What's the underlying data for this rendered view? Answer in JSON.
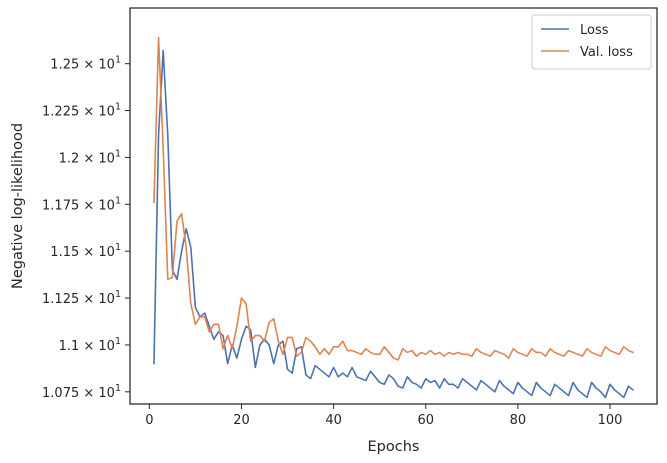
{
  "chart_data": {
    "type": "line",
    "title": "",
    "xlabel": "Epochs",
    "ylabel": "Negative log-likelihood",
    "xlim": [
      -4.2,
      110.2
    ],
    "ylim": [
      10.685,
      12.797
    ],
    "x_ticks": [
      0,
      20,
      40,
      60,
      80,
      100
    ],
    "x_tick_labels": [
      "0",
      "20",
      "40",
      "60",
      "80",
      "100"
    ],
    "y_ticks": [
      10.75,
      11.0,
      11.25,
      11.5,
      11.75,
      12.0,
      12.25,
      12.5
    ],
    "y_tick_mantissas": [
      "1.075",
      "1.1",
      "1.125",
      "1.15",
      "1.175",
      "1.2",
      "1.225",
      "1.25"
    ],
    "y_tick_multiplier": "× 10",
    "y_tick_exponent": "1",
    "grid": false,
    "legend_position": "top-right",
    "series": [
      {
        "name": "Loss",
        "color": "#4c72b0",
        "x": [
          1,
          2,
          3,
          4,
          5,
          6,
          7,
          8,
          9,
          10,
          11,
          12,
          13,
          14,
          15,
          16,
          17,
          18,
          19,
          20,
          21,
          22,
          23,
          24,
          25,
          26,
          27,
          28,
          29,
          30,
          31,
          32,
          33,
          34,
          35,
          36,
          37,
          38,
          39,
          40,
          41,
          42,
          43,
          44,
          45,
          46,
          47,
          48,
          49,
          50,
          51,
          52,
          53,
          54,
          55,
          56,
          57,
          58,
          59,
          60,
          61,
          62,
          63,
          64,
          65,
          66,
          67,
          68,
          69,
          70,
          71,
          72,
          73,
          74,
          75,
          76,
          77,
          78,
          79,
          80,
          81,
          82,
          83,
          84,
          85,
          86,
          87,
          88,
          89,
          90,
          91,
          92,
          93,
          94,
          95,
          96,
          97,
          98,
          99,
          100,
          101,
          102,
          103,
          104,
          105
        ],
        "values": [
          10.9,
          12.12,
          12.57,
          12.12,
          11.4,
          11.35,
          11.5,
          11.62,
          11.52,
          11.2,
          11.15,
          11.17,
          11.1,
          11.03,
          11.07,
          11.05,
          10.9,
          11.0,
          10.93,
          11.03,
          11.1,
          11.08,
          10.88,
          11.0,
          11.03,
          11.0,
          10.9,
          11.0,
          11.02,
          10.87,
          10.85,
          10.98,
          10.99,
          10.84,
          10.82,
          10.89,
          10.87,
          10.85,
          10.83,
          10.88,
          10.83,
          10.85,
          10.83,
          10.88,
          10.83,
          10.82,
          10.81,
          10.86,
          10.83,
          10.8,
          10.79,
          10.84,
          10.82,
          10.78,
          10.77,
          10.83,
          10.8,
          10.79,
          10.77,
          10.82,
          10.8,
          10.81,
          10.77,
          10.82,
          10.79,
          10.79,
          10.77,
          10.82,
          10.8,
          10.78,
          10.76,
          10.81,
          10.79,
          10.77,
          10.75,
          10.81,
          10.78,
          10.76,
          10.74,
          10.8,
          10.77,
          10.75,
          10.73,
          10.8,
          10.77,
          10.75,
          10.73,
          10.79,
          10.77,
          10.75,
          10.73,
          10.8,
          10.76,
          10.74,
          10.72,
          10.8,
          10.77,
          10.75,
          10.72,
          10.79,
          10.76,
          10.74,
          10.72,
          10.78,
          10.76
        ]
      },
      {
        "name": "Val. loss",
        "color": "#dd8452",
        "x": [
          1,
          2,
          3,
          4,
          5,
          6,
          7,
          8,
          9,
          10,
          11,
          12,
          13,
          14,
          15,
          16,
          17,
          18,
          19,
          20,
          21,
          22,
          23,
          24,
          25,
          26,
          27,
          28,
          29,
          30,
          31,
          32,
          33,
          34,
          35,
          36,
          37,
          38,
          39,
          40,
          41,
          42,
          43,
          44,
          45,
          46,
          47,
          48,
          49,
          50,
          51,
          52,
          53,
          54,
          55,
          56,
          57,
          58,
          59,
          60,
          61,
          62,
          63,
          64,
          65,
          66,
          67,
          68,
          69,
          70,
          71,
          72,
          73,
          74,
          75,
          76,
          77,
          78,
          79,
          80,
          81,
          82,
          83,
          84,
          85,
          86,
          87,
          88,
          89,
          90,
          91,
          92,
          93,
          94,
          95,
          96,
          97,
          98,
          99,
          100,
          101,
          102,
          103,
          104,
          105
        ],
        "values": [
          11.76,
          12.64,
          12.05,
          11.35,
          11.36,
          11.66,
          11.7,
          11.52,
          11.22,
          11.11,
          11.15,
          11.15,
          11.07,
          11.11,
          11.11,
          10.98,
          11.05,
          10.98,
          11.1,
          11.25,
          11.22,
          11.02,
          11.05,
          11.05,
          11.02,
          11.12,
          11.14,
          11.02,
          10.95,
          11.04,
          11.04,
          10.94,
          10.96,
          11.04,
          11.02,
          10.99,
          10.95,
          10.98,
          10.95,
          10.99,
          10.99,
          11.02,
          10.97,
          10.97,
          10.96,
          10.95,
          10.98,
          10.96,
          10.95,
          10.95,
          10.99,
          10.96,
          10.93,
          10.92,
          10.98,
          10.96,
          10.97,
          10.94,
          10.96,
          10.95,
          10.97,
          10.95,
          10.96,
          10.94,
          10.96,
          10.95,
          10.96,
          10.95,
          10.95,
          10.94,
          10.98,
          10.96,
          10.95,
          10.94,
          10.97,
          10.96,
          10.95,
          10.93,
          10.98,
          10.96,
          10.95,
          10.94,
          10.98,
          10.96,
          10.96,
          10.94,
          10.98,
          10.96,
          10.95,
          10.94,
          10.97,
          10.96,
          10.95,
          10.94,
          10.98,
          10.96,
          10.95,
          10.94,
          10.99,
          10.97,
          10.96,
          10.95,
          10.99,
          10.97,
          10.96
        ]
      }
    ]
  }
}
